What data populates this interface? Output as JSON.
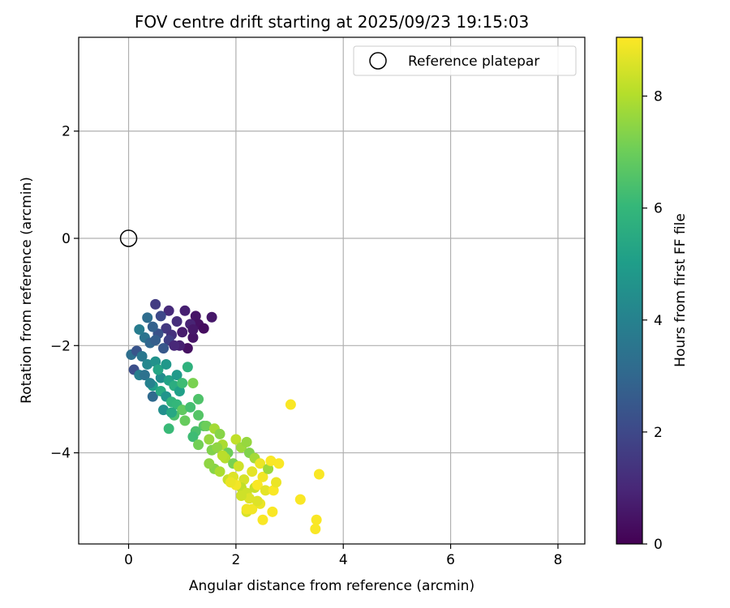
{
  "chart_data": {
    "type": "scatter",
    "title": "FOV centre drift starting at 2025/09/23 19:15:03",
    "xlabel": "Angular distance from reference (arcmin)",
    "ylabel": "Rotation from reference (arcmin)",
    "xlim": [
      -0.93,
      8.5
    ],
    "ylim": [
      -5.7,
      3.75
    ],
    "xticks": [
      0,
      2,
      4,
      6,
      8
    ],
    "yticks": [
      2,
      0,
      -2,
      -4
    ],
    "grid": true,
    "legend": {
      "position": "top-right",
      "entries": [
        "Reference platepar"
      ]
    },
    "reference_point": {
      "label": "Reference platepar",
      "x": 0,
      "y": 0
    },
    "colorbar": {
      "label": "Hours from first FF file",
      "range": [
        0,
        9.05
      ],
      "ticks": [
        0,
        2,
        4,
        6,
        8
      ],
      "colormap": [
        "#440154",
        "#482878",
        "#3e4989",
        "#31688e",
        "#26828e",
        "#1f9e89",
        "#35b779",
        "#6ece58",
        "#b5de2b",
        "#fde725"
      ]
    },
    "series": [
      {
        "name": "FOV centre drift",
        "x": [
          0.5,
          0.75,
          1.05,
          1.25,
          1.55,
          1.3,
          1.15,
          0.9,
          1.0,
          1.4,
          1.2,
          1.1,
          0.95,
          0.6,
          0.7,
          0.8,
          0.55,
          0.75,
          1.2,
          0.65,
          0.45,
          0.35,
          0.85,
          0.3,
          0.4,
          0.5,
          0.2,
          0.05,
          0.15,
          0.25,
          0.1,
          0.2,
          0.35,
          0.5,
          0.3,
          0.45,
          0.6,
          0.55,
          0.7,
          0.4,
          0.45,
          0.6,
          0.75,
          0.9,
          0.7,
          0.85,
          0.95,
          1.1,
          0.65,
          0.8,
          1.0,
          0.9,
          1.2,
          1.0,
          0.85,
          0.75,
          1.3,
          0.8,
          1.05,
          1.15,
          1.3,
          1.4,
          1.25,
          1.45,
          1.6,
          1.7,
          1.2,
          1.3,
          1.5,
          1.55,
          1.75,
          1.85,
          1.65,
          2.0,
          2.1,
          1.8,
          1.95,
          2.2,
          2.25,
          1.6,
          1.7,
          2.05,
          2.35,
          1.85,
          1.95,
          1.5,
          1.75,
          2.15,
          2.3,
          2.45,
          2.1,
          2.2,
          2.0,
          2.25,
          2.35,
          1.9,
          2.5,
          2.6,
          2.4,
          2.2,
          2.55,
          2.3,
          2.1,
          2.45,
          2.65,
          2.7,
          2.75,
          2.8,
          2.4,
          2.5,
          2.2,
          3.02,
          3.2,
          3.55,
          3.5,
          3.48,
          2.68
        ],
        "y": [
          -1.23,
          -1.35,
          -1.35,
          -1.45,
          -1.47,
          -1.6,
          -1.6,
          -1.55,
          -1.75,
          -1.68,
          -1.85,
          -2.05,
          -2.0,
          -1.45,
          -1.68,
          -1.8,
          -1.78,
          -1.9,
          -1.7,
          -2.05,
          -1.65,
          -1.48,
          -2.0,
          -1.85,
          -1.95,
          -1.9,
          -1.7,
          -2.17,
          -2.1,
          -2.2,
          -2.45,
          -2.55,
          -2.35,
          -2.3,
          -2.55,
          -2.75,
          -2.6,
          -2.45,
          -2.35,
          -2.7,
          -2.95,
          -2.85,
          -2.65,
          -2.55,
          -2.95,
          -2.75,
          -2.85,
          -2.4,
          -3.2,
          -3.05,
          -2.7,
          -3.1,
          -2.7,
          -3.2,
          -3.3,
          -3.55,
          -3.0,
          -3.25,
          -3.4,
          -3.15,
          -3.3,
          -3.5,
          -3.6,
          -3.5,
          -3.55,
          -3.65,
          -3.7,
          -3.85,
          -3.75,
          -3.95,
          -3.85,
          -4.0,
          -3.9,
          -3.75,
          -3.9,
          -4.1,
          -4.2,
          -3.8,
          -4.0,
          -4.3,
          -4.35,
          -4.25,
          -4.1,
          -4.5,
          -4.45,
          -4.2,
          -4.05,
          -4.5,
          -4.35,
          -4.2,
          -4.65,
          -4.75,
          -4.6,
          -4.85,
          -4.65,
          -4.55,
          -4.45,
          -4.3,
          -4.6,
          -5.1,
          -4.7,
          -5.05,
          -4.8,
          -4.95,
          -4.15,
          -4.7,
          -4.55,
          -4.2,
          -4.9,
          -5.25,
          -5.05,
          -3.1,
          -4.87,
          -4.4,
          -5.25,
          -5.42,
          -5.1
        ],
        "hours": [
          1.6,
          1.1,
          0.8,
          0.5,
          0.6,
          0.4,
          0.9,
          1.2,
          0.7,
          0.3,
          0.5,
          0.4,
          0.8,
          2.0,
          1.5,
          1.3,
          2.3,
          1.7,
          0.6,
          2.5,
          2.8,
          3.2,
          1.0,
          3.5,
          3.0,
          2.7,
          3.8,
          3.3,
          2.4,
          3.6,
          2.2,
          3.9,
          4.2,
          4.6,
          3.4,
          5.0,
          4.4,
          5.3,
          4.8,
          4.0,
          3.1,
          5.5,
          5.2,
          4.9,
          4.7,
          5.6,
          5.1,
          5.8,
          4.5,
          5.9,
          6.2,
          6.0,
          7.2,
          6.8,
          6.4,
          6.1,
          6.5,
          5.4,
          6.9,
          6.3,
          6.6,
          6.7,
          6.4,
          7.0,
          7.8,
          7.4,
          6.2,
          7.1,
          7.6,
          7.3,
          7.9,
          7.0,
          7.5,
          8.2,
          7.7,
          8.0,
          7.2,
          7.6,
          7.3,
          7.4,
          7.9,
          8.4,
          7.8,
          8.3,
          8.6,
          7.5,
          8.1,
          8.5,
          8.7,
          8.8,
          8.2,
          8.4,
          8.9,
          8.6,
          8.3,
          8.8,
          8.9,
          7.7,
          9.0,
          8.5,
          8.7,
          8.9,
          8.4,
          8.8,
          9.0,
          9.0,
          8.8,
          9.0,
          8.6,
          9.0,
          8.9,
          9.0,
          9.0,
          9.0,
          9.0,
          9.0,
          9.0
        ]
      }
    ]
  }
}
